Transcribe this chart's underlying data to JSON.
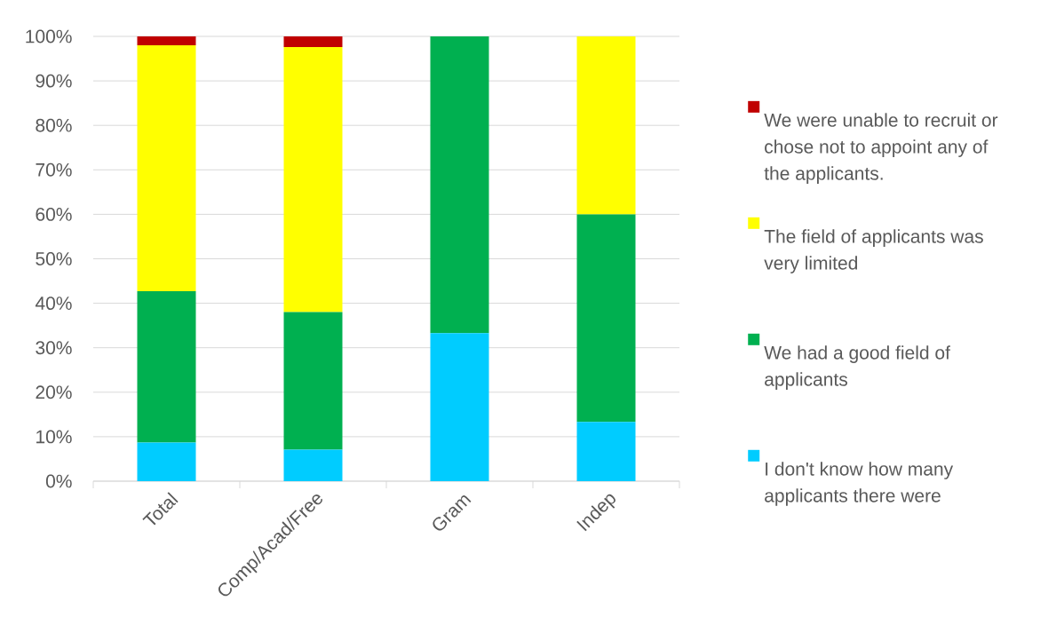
{
  "chart_data": {
    "type": "bar",
    "stacked": true,
    "categories": [
      "Total",
      "Comp/Acad/Free",
      "Gram",
      "Indep"
    ],
    "series": [
      {
        "name": "I don't know how many applicants there were",
        "color": "#00ccff",
        "values": [
          8.7,
          7.1,
          33.3,
          13.3
        ]
      },
      {
        "name": "We had a good field of applicants",
        "color": "#00b050",
        "values": [
          34.0,
          30.9,
          66.7,
          46.7
        ]
      },
      {
        "name": "The field of applicants was very limited",
        "color": "#ffff00",
        "values": [
          55.3,
          59.6,
          0,
          40.0
        ]
      },
      {
        "name": "We were unable to recruit or chose not to appoint any of the applicants.",
        "color": "#c00000",
        "values": [
          2.0,
          2.4,
          0,
          0
        ]
      }
    ],
    "ylim": [
      0,
      100
    ],
    "yticks": [
      {
        "value": 0,
        "label": "0%"
      },
      {
        "value": 10,
        "label": "10%"
      },
      {
        "value": 20,
        "label": "20%"
      },
      {
        "value": 30,
        "label": "30%"
      },
      {
        "value": 40,
        "label": "40%"
      },
      {
        "value": 50,
        "label": "50%"
      },
      {
        "value": 60,
        "label": "60%"
      },
      {
        "value": 70,
        "label": "70%"
      },
      {
        "value": 80,
        "label": "80%"
      },
      {
        "value": 90,
        "label": "90%"
      },
      {
        "value": 100,
        "label": "100%"
      }
    ],
    "grid": "y",
    "legend": "right"
  }
}
